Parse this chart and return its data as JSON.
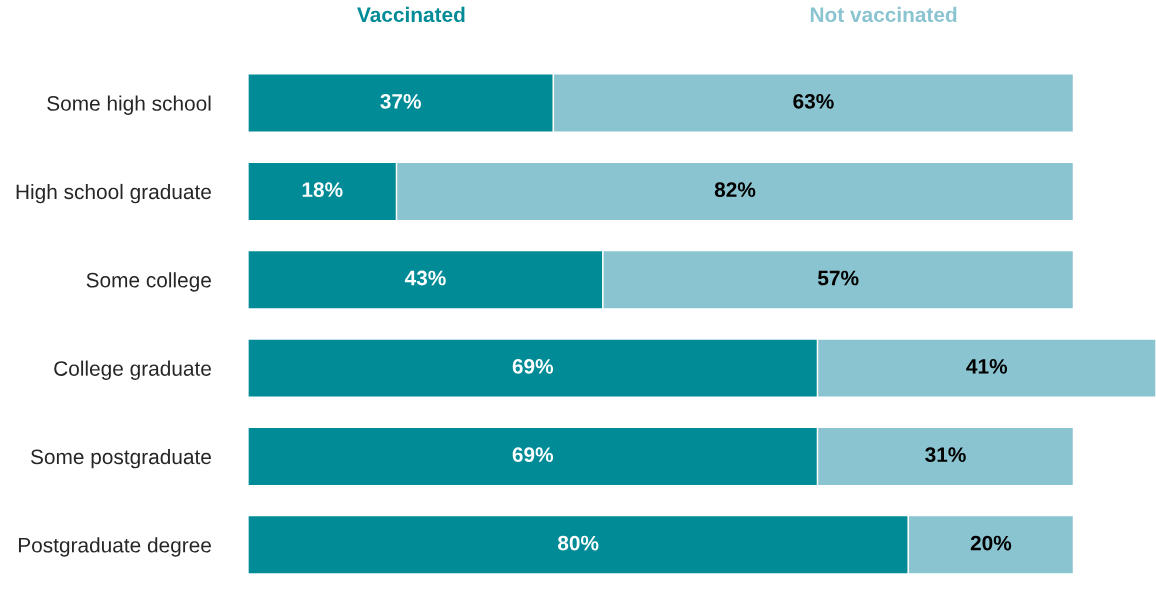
{
  "chart_data": {
    "type": "bar",
    "orientation": "horizontal",
    "stacked": true,
    "legend": "top",
    "categories": [
      "Some high school",
      "High school graduate",
      "Some college",
      "College graduate",
      "Some postgraduate",
      "Postgraduate degree"
    ],
    "series": [
      {
        "name": "Vaccinated",
        "color": "#008b96",
        "values": [
          37,
          18,
          43,
          69,
          69,
          80
        ],
        "value_labels": [
          "37%",
          "18%",
          "43%",
          "69%",
          "69%",
          "80%"
        ]
      },
      {
        "name": "Not vaccinated",
        "color": "#8ac4d0",
        "values": [
          63,
          82,
          57,
          41,
          31,
          20
        ],
        "value_labels": [
          "63%",
          "82%",
          "57%",
          "41%",
          "31%",
          "20%"
        ]
      }
    ]
  }
}
